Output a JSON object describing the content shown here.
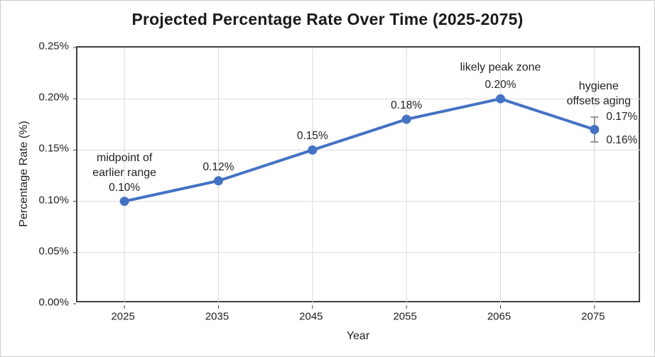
{
  "chart_data": {
    "type": "line",
    "title": "Projected Percentage Rate Over Time (2025-2075)",
    "xlabel": "Year",
    "ylabel": "Percentage Rate (%)",
    "categories": [
      "2025",
      "2035",
      "2045",
      "2055",
      "2065",
      "2075"
    ],
    "values": [
      0.1,
      0.12,
      0.15,
      0.18,
      0.2,
      0.17
    ],
    "point_labels": [
      "0.10%",
      "0.12%",
      "0.15%",
      "0.18%",
      "0.20%",
      ""
    ],
    "ylim": [
      0,
      0.25
    ],
    "y_ticks": [
      0,
      0.05,
      0.1,
      0.15,
      0.2,
      0.25
    ],
    "y_tick_labels": [
      "0.00%",
      "0.05%",
      "0.10%",
      "0.15%",
      "0.20%",
      "0.25%"
    ],
    "grid": "both",
    "legend": "none",
    "line_color": "#4472c4",
    "marker_color": "#4472c4",
    "grid_color": "#d9d9d9",
    "axis_border_color": "#404040",
    "error_bar": {
      "category": "2075",
      "point_index": 5,
      "upper_label": "0.17%",
      "lower_label": "0.16%",
      "color": "#7f7f7f"
    },
    "annotations": [
      {
        "lines": [
          "midpoint of",
          "earlier range"
        ],
        "anchor_category": "2025",
        "anchor_index": 0
      },
      {
        "lines": [
          "likely peak zone"
        ],
        "anchor_category": "2065",
        "anchor_index": 4
      },
      {
        "lines": [
          "hygiene",
          "offsets aging"
        ],
        "anchor_category": "2075",
        "anchor_index": 5
      }
    ]
  }
}
